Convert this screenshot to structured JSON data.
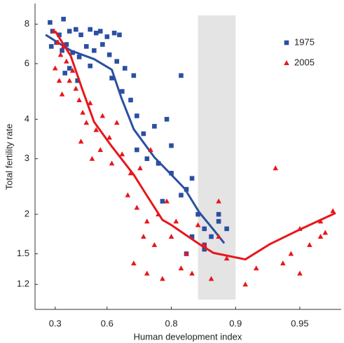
{
  "chart_data": {
    "type": "scatter",
    "xlabel": "Human development index",
    "ylabel": "Total fertility rate",
    "xscale": "log-complement",
    "yscale": "log",
    "xlim": [
      0.13,
      0.968
    ],
    "ylim": [
      1.0,
      9.3
    ],
    "xticks": [
      0.3,
      0.6,
      0.8,
      0.9,
      0.95
    ],
    "yticks": [
      1.2,
      1.5,
      2,
      3,
      4,
      6,
      8
    ],
    "shaded_region": [
      0.85,
      0.9
    ],
    "shaded_color": "#e4e4e4",
    "legend": "upper right",
    "series": [
      {
        "name": "1975",
        "color": "#2b4fa2",
        "marker": "square",
        "x": [
          0.26,
          0.28,
          0.33,
          0.36,
          0.4,
          0.44,
          0.47,
          0.52,
          0.55,
          0.57,
          0.6,
          0.63,
          0.65,
          0.27,
          0.31,
          0.35,
          0.38,
          0.42,
          0.46,
          0.5,
          0.54,
          0.58,
          0.61,
          0.64,
          0.67,
          0.7,
          0.37,
          0.4,
          0.45,
          0.52,
          0.62,
          0.66,
          0.69,
          0.71,
          0.73,
          0.76,
          0.79,
          0.82,
          0.71,
          0.74,
          0.77,
          0.8,
          0.83,
          0.78,
          0.82,
          0.85,
          0.86,
          0.84,
          0.87,
          0.88,
          0.89,
          0.83,
          0.86,
          0.88,
          0.84,
          0.8,
          0.86
        ],
        "values": [
          8.1,
          7.6,
          7.4,
          8.3,
          7.6,
          7.7,
          7.4,
          7.7,
          7.5,
          7.6,
          7.3,
          7.5,
          7.4,
          6.8,
          7.0,
          6.6,
          6.9,
          6.5,
          6.3,
          6.8,
          6.6,
          6.9,
          6.4,
          6.1,
          5.8,
          5.5,
          5.6,
          5.8,
          5.3,
          5.9,
          5.4,
          4.9,
          4.6,
          4.1,
          3.6,
          3.8,
          4.0,
          5.5,
          3.2,
          3.0,
          2.9,
          2.7,
          2.4,
          2.2,
          2.3,
          2.0,
          1.8,
          1.7,
          1.7,
          1.9,
          1.8,
          1.5,
          1.6,
          2.0,
          2.6,
          3.3,
          1.55
        ],
        "trend_x": [
          0.224,
          0.408,
          0.54,
          0.62,
          0.657,
          0.7,
          0.76,
          0.8,
          0.827,
          0.852,
          0.873,
          0.887
        ],
        "trend_values": [
          7.4,
          6.6,
          6.2,
          5.74,
          4.68,
          3.72,
          3.03,
          2.67,
          2.41,
          2.03,
          1.79,
          1.62
        ]
      },
      {
        "name": "2005",
        "color": "#e8161b",
        "marker": "triangle",
        "x": [
          0.29,
          0.32,
          0.34,
          0.36,
          0.38,
          0.4,
          0.42,
          0.44,
          0.46,
          0.33,
          0.35,
          0.3,
          0.48,
          0.5,
          0.52,
          0.55,
          0.58,
          0.61,
          0.64,
          0.47,
          0.53,
          0.57,
          0.62,
          0.66,
          0.69,
          0.72,
          0.75,
          0.68,
          0.71,
          0.74,
          0.77,
          0.79,
          0.81,
          0.73,
          0.76,
          0.8,
          0.83,
          0.86,
          0.88,
          0.7,
          0.74,
          0.78,
          0.82,
          0.84,
          0.87,
          0.89,
          0.91,
          0.92,
          0.935,
          0.94,
          0.945,
          0.95,
          0.955,
          0.96,
          0.96,
          0.965,
          0.962,
          0.95,
          0.88,
          0.85
        ],
        "values": [
          7.6,
          7.0,
          6.4,
          6.8,
          6.1,
          5.3,
          5.7,
          5.0,
          4.6,
          5.3,
          4.8,
          5.8,
          4.2,
          3.9,
          4.5,
          3.7,
          4.1,
          3.5,
          3.9,
          3.4,
          3.0,
          3.2,
          2.9,
          3.1,
          2.7,
          2.8,
          3.2,
          2.3,
          2.1,
          1.9,
          2.0,
          2.2,
          1.9,
          1.7,
          1.6,
          1.7,
          1.5,
          1.6,
          1.7,
          1.4,
          1.3,
          1.25,
          1.35,
          1.3,
          1.25,
          1.45,
          1.2,
          1.35,
          2.8,
          1.4,
          1.5,
          1.8,
          1.6,
          1.9,
          1.7,
          2.05,
          1.75,
          1.3,
          2.2,
          1.85
        ],
        "trend_x": [
          0.3,
          0.408,
          0.48,
          0.54,
          0.62,
          0.7,
          0.74,
          0.78,
          0.8,
          0.827,
          0.852,
          0.873,
          0.91,
          0.931,
          0.95,
          0.966
        ],
        "trend_values": [
          7.6,
          6.35,
          4.93,
          3.92,
          3.28,
          2.67,
          2.29,
          1.92,
          1.85,
          1.73,
          1.61,
          1.51,
          1.44,
          1.61,
          1.79,
          2.02
        ]
      }
    ]
  }
}
